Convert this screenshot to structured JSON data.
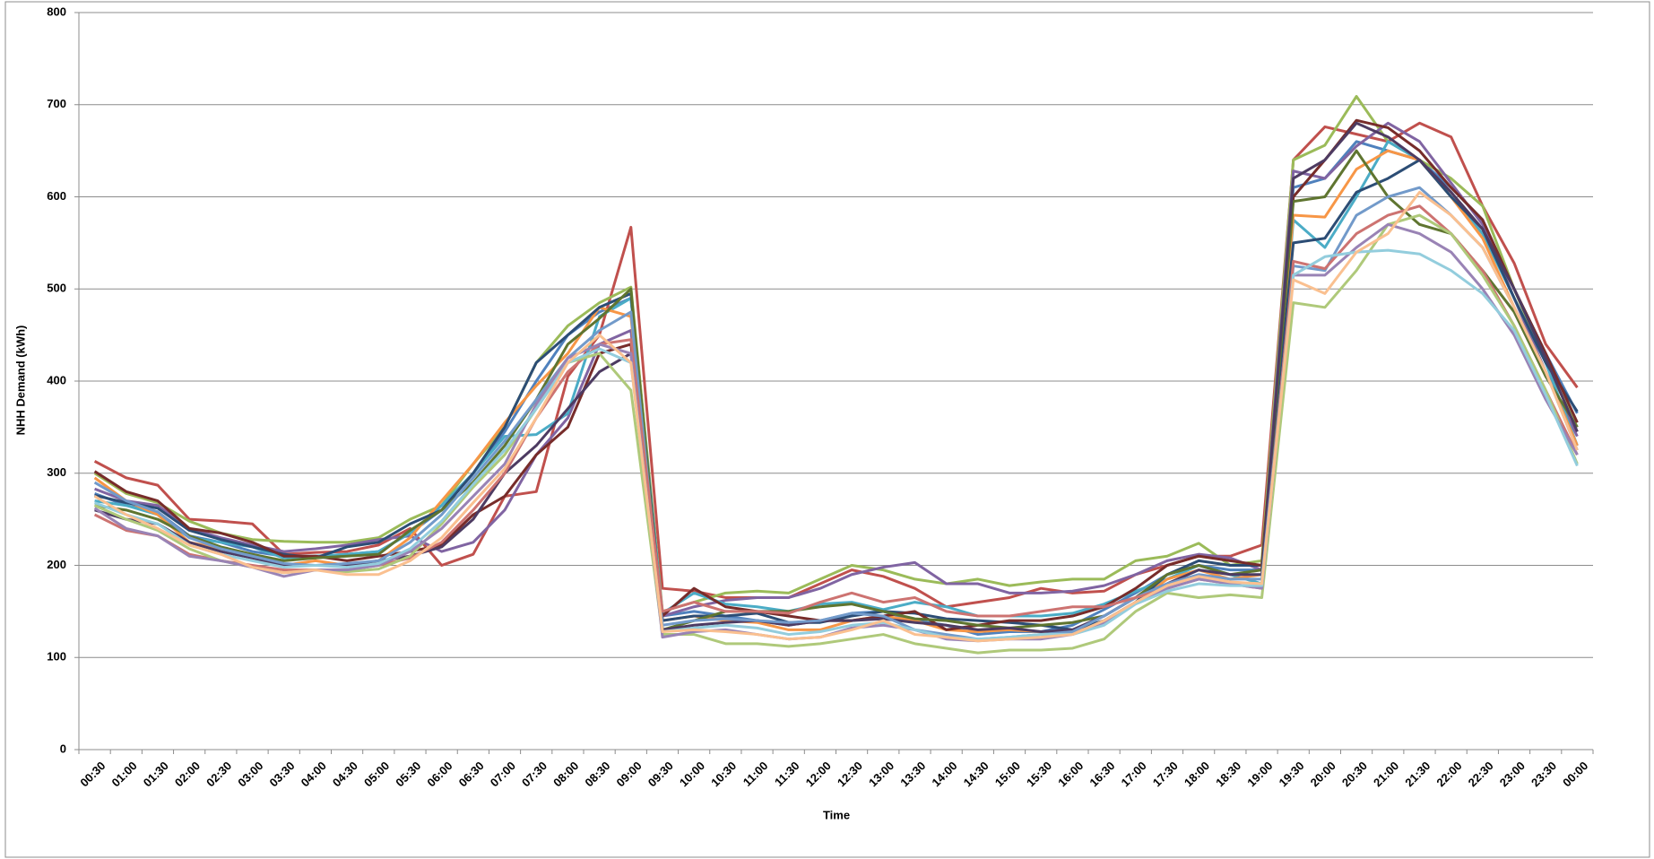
{
  "chart_data": {
    "type": "line",
    "y_label": "NHH Demand (kWh)",
    "x_label": "Time",
    "categories": [
      "00:30",
      "01:00",
      "01:30",
      "02:00",
      "02:30",
      "03:00",
      "03:30",
      "04:00",
      "04:30",
      "05:00",
      "05:30",
      "06:00",
      "06:30",
      "07:00",
      "07:30",
      "08:00",
      "08:30",
      "09:00",
      "09:30",
      "10:00",
      "10:30",
      "11:00",
      "11:30",
      "12:00",
      "12:30",
      "13:00",
      "13:30",
      "14:00",
      "14:30",
      "15:00",
      "15:30",
      "16:00",
      "16:30",
      "17:00",
      "17:30",
      "18:00",
      "18:30",
      "19:00",
      "19:30",
      "20:00",
      "20:30",
      "21:00",
      "21:30",
      "22:00",
      "22:30",
      "23:00",
      "23:30",
      "00:00"
    ],
    "ylim": [
      0,
      800
    ],
    "yticks": [
      0,
      100,
      200,
      300,
      400,
      500,
      600,
      700,
      800
    ],
    "grid": true,
    "series": [
      {
        "color": "#4F81BD",
        "values": [
          278,
          265,
          258,
          232,
          225,
          215,
          210,
          210,
          212,
          215,
          235,
          260,
          300,
          345,
          400,
          450,
          475,
          490,
          145,
          150,
          145,
          140,
          135,
          140,
          148,
          150,
          140,
          135,
          125,
          128,
          128,
          135,
          152,
          170,
          190,
          200,
          195,
          195,
          610,
          620,
          660,
          650,
          640,
          610,
          575,
          500,
          430,
          365
        ]
      },
      {
        "color": "#C0504D",
        "values": [
          313,
          295,
          287,
          250,
          248,
          245,
          212,
          214,
          215,
          222,
          240,
          200,
          212,
          275,
          280,
          405,
          450,
          567,
          175,
          172,
          165,
          165,
          165,
          180,
          195,
          188,
          175,
          155,
          160,
          165,
          175,
          170,
          172,
          190,
          200,
          210,
          210,
          222,
          640,
          676,
          668,
          660,
          680,
          665,
          590,
          528,
          440,
          393
        ]
      },
      {
        "color": "#9BBB59",
        "values": [
          300,
          278,
          268,
          248,
          235,
          228,
          226,
          225,
          225,
          230,
          250,
          265,
          310,
          350,
          420,
          460,
          485,
          502,
          150,
          160,
          170,
          172,
          170,
          185,
          200,
          195,
          185,
          180,
          185,
          178,
          182,
          185,
          185,
          205,
          210,
          224,
          200,
          205,
          640,
          656,
          709,
          660,
          640,
          620,
          590,
          500,
          420,
          350
        ]
      },
      {
        "color": "#8064A2",
        "values": [
          283,
          270,
          265,
          240,
          230,
          222,
          215,
          218,
          222,
          228,
          232,
          215,
          225,
          260,
          320,
          360,
          440,
          455,
          145,
          155,
          162,
          165,
          165,
          175,
          190,
          198,
          203,
          180,
          180,
          170,
          170,
          172,
          178,
          190,
          205,
          212,
          208,
          195,
          628,
          620,
          655,
          680,
          660,
          615,
          570,
          490,
          410,
          340
        ]
      },
      {
        "color": "#4BACC6",
        "values": [
          270,
          265,
          255,
          230,
          225,
          220,
          208,
          210,
          212,
          215,
          235,
          265,
          300,
          340,
          342,
          365,
          470,
          490,
          148,
          170,
          158,
          155,
          150,
          158,
          160,
          152,
          160,
          155,
          145,
          145,
          145,
          148,
          158,
          172,
          185,
          200,
          190,
          180,
          575,
          545,
          600,
          660,
          640,
          600,
          560,
          490,
          420,
          330
        ]
      },
      {
        "color": "#F79646",
        "values": [
          295,
          270,
          255,
          225,
          218,
          210,
          200,
          205,
          200,
          205,
          230,
          270,
          310,
          355,
          395,
          430,
          480,
          470,
          140,
          145,
          140,
          138,
          130,
          130,
          140,
          145,
          140,
          130,
          128,
          130,
          128,
          128,
          140,
          160,
          185,
          195,
          185,
          190,
          580,
          578,
          630,
          650,
          640,
          600,
          555,
          480,
          410,
          330
        ]
      },
      {
        "color": "#2C4D75",
        "values": [
          276,
          268,
          262,
          238,
          228,
          220,
          212,
          208,
          220,
          225,
          245,
          260,
          300,
          350,
          420,
          450,
          480,
          495,
          140,
          145,
          145,
          148,
          138,
          138,
          145,
          150,
          148,
          142,
          140,
          138,
          135,
          130,
          140,
          160,
          190,
          205,
          200,
          200,
          550,
          555,
          605,
          620,
          640,
          600,
          565,
          490,
          420,
          367
        ]
      },
      {
        "color": "#772C2A",
        "values": [
          302,
          280,
          270,
          240,
          235,
          225,
          210,
          210,
          205,
          210,
          215,
          222,
          255,
          275,
          320,
          350,
          430,
          440,
          145,
          175,
          155,
          150,
          145,
          140,
          140,
          145,
          150,
          130,
          135,
          140,
          140,
          145,
          155,
          175,
          200,
          210,
          205,
          200,
          600,
          640,
          683,
          675,
          650,
          610,
          575,
          500,
          430,
          355
        ]
      },
      {
        "color": "#5F7530",
        "values": [
          265,
          260,
          250,
          232,
          220,
          212,
          205,
          208,
          210,
          212,
          238,
          260,
          290,
          330,
          380,
          440,
          468,
          500,
          130,
          140,
          150,
          150,
          150,
          155,
          158,
          150,
          142,
          140,
          135,
          132,
          135,
          138,
          145,
          165,
          190,
          200,
          190,
          195,
          595,
          600,
          650,
          600,
          570,
          560,
          520,
          475,
          405,
          350
        ]
      },
      {
        "color": "#4D3B62",
        "values": [
          260,
          250,
          245,
          225,
          215,
          208,
          200,
          200,
          200,
          205,
          210,
          220,
          250,
          300,
          330,
          370,
          410,
          430,
          130,
          135,
          138,
          140,
          135,
          140,
          140,
          142,
          138,
          135,
          130,
          132,
          128,
          130,
          145,
          165,
          180,
          195,
          190,
          190,
          620,
          640,
          680,
          665,
          640,
          605,
          565,
          500,
          425,
          345
        ]
      },
      {
        "color": "#729ACA",
        "values": [
          290,
          270,
          258,
          230,
          218,
          210,
          202,
          200,
          202,
          205,
          225,
          255,
          295,
          335,
          380,
          425,
          455,
          475,
          135,
          140,
          142,
          140,
          138,
          140,
          148,
          145,
          130,
          125,
          120,
          122,
          125,
          128,
          145,
          165,
          180,
          190,
          185,
          185,
          525,
          520,
          580,
          600,
          610,
          580,
          545,
          480,
          410,
          325
        ]
      },
      {
        "color": "#CD7371",
        "values": [
          255,
          238,
          232,
          212,
          205,
          200,
          195,
          195,
          195,
          200,
          208,
          225,
          260,
          300,
          360,
          410,
          440,
          445,
          150,
          160,
          150,
          150,
          148,
          160,
          170,
          160,
          165,
          150,
          145,
          145,
          150,
          155,
          155,
          165,
          175,
          185,
          180,
          175,
          530,
          522,
          560,
          580,
          590,
          560,
          520,
          460,
          390,
          320
        ]
      },
      {
        "color": "#AFC97A",
        "values": [
          265,
          250,
          238,
          218,
          205,
          198,
          192,
          195,
          193,
          196,
          210,
          245,
          285,
          320,
          370,
          420,
          430,
          390,
          125,
          125,
          115,
          115,
          112,
          115,
          120,
          125,
          115,
          110,
          105,
          108,
          108,
          110,
          120,
          150,
          170,
          165,
          168,
          165,
          485,
          480,
          520,
          570,
          580,
          560,
          515,
          460,
          390,
          310
        ]
      },
      {
        "color": "#9983B5",
        "values": [
          262,
          240,
          232,
          210,
          205,
          198,
          188,
          195,
          195,
          200,
          215,
          240,
          275,
          310,
          375,
          425,
          440,
          430,
          122,
          128,
          130,
          125,
          120,
          122,
          132,
          135,
          130,
          120,
          118,
          120,
          120,
          125,
          138,
          160,
          175,
          185,
          180,
          175,
          515,
          515,
          545,
          570,
          560,
          540,
          500,
          450,
          380,
          320
        ]
      },
      {
        "color": "#93CDDD",
        "values": [
          268,
          255,
          245,
          222,
          212,
          205,
          198,
          200,
          198,
          202,
          218,
          248,
          288,
          325,
          370,
          420,
          435,
          420,
          128,
          132,
          135,
          132,
          125,
          128,
          135,
          138,
          130,
          122,
          120,
          122,
          125,
          125,
          135,
          158,
          172,
          180,
          178,
          178,
          515,
          535,
          540,
          542,
          538,
          520,
          495,
          455,
          385,
          308
        ]
      },
      {
        "color": "#FAC090",
        "values": [
          275,
          255,
          240,
          222,
          212,
          198,
          192,
          195,
          190,
          190,
          205,
          230,
          268,
          305,
          360,
          420,
          450,
          420,
          128,
          130,
          128,
          125,
          120,
          122,
          130,
          140,
          125,
          122,
          118,
          120,
          122,
          125,
          140,
          160,
          178,
          188,
          182,
          180,
          510,
          495,
          540,
          560,
          605,
          580,
          545,
          480,
          410,
          325
        ]
      }
    ]
  }
}
